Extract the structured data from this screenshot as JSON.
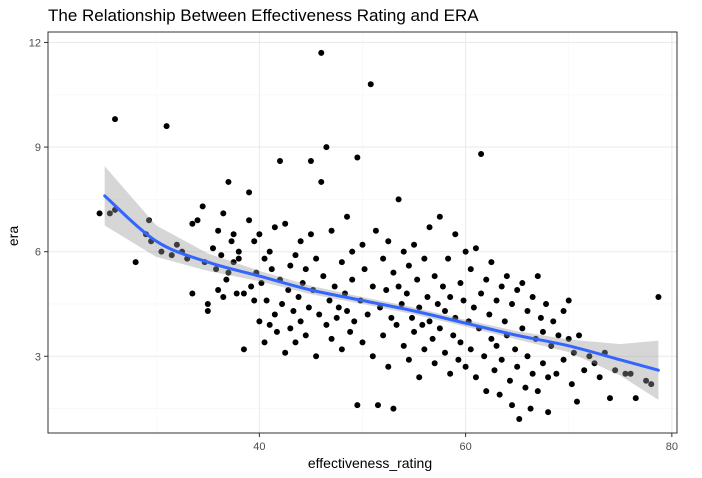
{
  "chart_data": {
    "type": "scatter",
    "title": "The Relationship Between Effectiveness Rating and ERA",
    "xlabel": "effectiveness_rating",
    "ylabel": "era",
    "xlim": [
      19.5,
      80.5
    ],
    "ylim": [
      0.8,
      12.3
    ],
    "x_ticks": [
      40,
      60,
      80
    ],
    "y_ticks": [
      3,
      6,
      9,
      12
    ],
    "x_tick_labels": [
      "40",
      "60",
      "80"
    ],
    "y_tick_labels": [
      "3",
      "6",
      "9",
      "12"
    ],
    "grid": true,
    "legend": "none",
    "colors": {
      "points": "#000000",
      "smooth": "#3366ff",
      "ribbon": "#999999"
    },
    "smooth": {
      "x": [
        25,
        30,
        35,
        40,
        45,
        50,
        55,
        60,
        65,
        70,
        75,
        78.7
      ],
      "y": [
        7.6,
        6.3,
        5.7,
        5.3,
        4.9,
        4.6,
        4.3,
        3.95,
        3.6,
        3.3,
        2.9,
        2.6
      ],
      "lower": [
        6.75,
        5.85,
        5.45,
        5.15,
        4.78,
        4.5,
        4.2,
        3.85,
        3.48,
        3.12,
        2.45,
        1.75
      ],
      "upper": [
        8.45,
        6.75,
        5.95,
        5.45,
        5.02,
        4.7,
        4.4,
        4.05,
        3.72,
        3.48,
        3.35,
        3.45
      ]
    },
    "points": [
      [
        24.5,
        7.1
      ],
      [
        25.5,
        7.1
      ],
      [
        26,
        9.8
      ],
      [
        26,
        7.2
      ],
      [
        28,
        5.7
      ],
      [
        29,
        6.5
      ],
      [
        29.3,
        6.9
      ],
      [
        29.5,
        6.3
      ],
      [
        30.5,
        6.0
      ],
      [
        31,
        9.6
      ],
      [
        31.5,
        5.9
      ],
      [
        32,
        6.2
      ],
      [
        32.5,
        6.0
      ],
      [
        33,
        5.8
      ],
      [
        33.5,
        4.8
      ],
      [
        33.5,
        6.8
      ],
      [
        34,
        6.9
      ],
      [
        34.5,
        7.3
      ],
      [
        34.7,
        5.7
      ],
      [
        35,
        4.5
      ],
      [
        35,
        4.3
      ],
      [
        35.5,
        6.1
      ],
      [
        35.8,
        5.5
      ],
      [
        36,
        6.6
      ],
      [
        36,
        4.9
      ],
      [
        36.3,
        5.9
      ],
      [
        36.5,
        4.7
      ],
      [
        36.5,
        7.1
      ],
      [
        36.8,
        5.2
      ],
      [
        37,
        8.0
      ],
      [
        37,
        5.4
      ],
      [
        37.3,
        6.3
      ],
      [
        37.5,
        6.5
      ],
      [
        37.5,
        5.7
      ],
      [
        37.8,
        4.8
      ],
      [
        38,
        5.8
      ],
      [
        38,
        6.0
      ],
      [
        38.5,
        3.2
      ],
      [
        38.5,
        4.8
      ],
      [
        39,
        7.7
      ],
      [
        39,
        6.9
      ],
      [
        39.2,
        5.0
      ],
      [
        39.5,
        6.3
      ],
      [
        39.5,
        4.6
      ],
      [
        39.7,
        5.4
      ],
      [
        40,
        6.5
      ],
      [
        40,
        4.0
      ],
      [
        40.2,
        5.1
      ],
      [
        40.5,
        3.4
      ],
      [
        40.5,
        5.8
      ],
      [
        40.7,
        4.6
      ],
      [
        41,
        6.0
      ],
      [
        41,
        3.9
      ],
      [
        41.2,
        5.5
      ],
      [
        41.5,
        4.2
      ],
      [
        41.5,
        6.7
      ],
      [
        41.7,
        3.7
      ],
      [
        42,
        8.6
      ],
      [
        42,
        5.2
      ],
      [
        42.2,
        4.5
      ],
      [
        42.5,
        3.1
      ],
      [
        42.5,
        6.8
      ],
      [
        42.8,
        4.9
      ],
      [
        43,
        5.6
      ],
      [
        43,
        3.8
      ],
      [
        43.3,
        4.3
      ],
      [
        43.5,
        5.9
      ],
      [
        43.5,
        3.4
      ],
      [
        43.8,
        4.7
      ],
      [
        44,
        6.3
      ],
      [
        44,
        4.0
      ],
      [
        44.2,
        5.1
      ],
      [
        44.5,
        3.6
      ],
      [
        44.5,
        5.5
      ],
      [
        44.8,
        4.4
      ],
      [
        45,
        8.6
      ],
      [
        45,
        6.5
      ],
      [
        45.2,
        4.9
      ],
      [
        45.5,
        3.0
      ],
      [
        45.5,
        5.8
      ],
      [
        45.8,
        4.2
      ],
      [
        46,
        11.7
      ],
      [
        46,
        8.0
      ],
      [
        46.2,
        5.3
      ],
      [
        46.5,
        3.9
      ],
      [
        46.5,
        9.0
      ],
      [
        46.8,
        4.6
      ],
      [
        47,
        6.6
      ],
      [
        47,
        3.5
      ],
      [
        47.3,
        5.0
      ],
      [
        47.5,
        4.1
      ],
      [
        47.7,
        4.4
      ],
      [
        48,
        5.7
      ],
      [
        48,
        3.2
      ],
      [
        48.3,
        4.8
      ],
      [
        48.5,
        7.0
      ],
      [
        48.5,
        4.3
      ],
      [
        48.8,
        3.7
      ],
      [
        49,
        6.0
      ],
      [
        49,
        5.2
      ],
      [
        49.2,
        4.0
      ],
      [
        49.5,
        8.7
      ],
      [
        49.5,
        1.6
      ],
      [
        49.8,
        4.6
      ],
      [
        50,
        6.2
      ],
      [
        50,
        3.4
      ],
      [
        50.2,
        5.5
      ],
      [
        50.5,
        4.2
      ],
      [
        50.8,
        10.8
      ],
      [
        51,
        5.0
      ],
      [
        51,
        3.0
      ],
      [
        51.3,
        6.6
      ],
      [
        51.5,
        1.6
      ],
      [
        51.7,
        4.4
      ],
      [
        52,
        5.8
      ],
      [
        52,
        3.6
      ],
      [
        52.3,
        4.9
      ],
      [
        52.5,
        6.3
      ],
      [
        52.5,
        2.7
      ],
      [
        52.8,
        4.1
      ],
      [
        53,
        5.4
      ],
      [
        53,
        1.5
      ],
      [
        53.3,
        3.9
      ],
      [
        53.5,
        5.0
      ],
      [
        53.5,
        7.5
      ],
      [
        53.8,
        4.5
      ],
      [
        54,
        3.3
      ],
      [
        54,
        6.0
      ],
      [
        54.3,
        4.8
      ],
      [
        54.5,
        2.9
      ],
      [
        54.5,
        5.6
      ],
      [
        54.8,
        4.1
      ],
      [
        55,
        6.2
      ],
      [
        55,
        3.7
      ],
      [
        55.3,
        5.2
      ],
      [
        55.5,
        4.4
      ],
      [
        55.5,
        2.4
      ],
      [
        55.8,
        3.9
      ],
      [
        56,
        5.8
      ],
      [
        56,
        3.2
      ],
      [
        56.3,
        4.7
      ],
      [
        56.5,
        6.7
      ],
      [
        56.5,
        4.0
      ],
      [
        56.8,
        3.5
      ],
      [
        57,
        5.3
      ],
      [
        57,
        2.8
      ],
      [
        57.3,
        4.5
      ],
      [
        57.5,
        7.0
      ],
      [
        57.5,
        3.8
      ],
      [
        57.8,
        5.0
      ],
      [
        58,
        3.1
      ],
      [
        58,
        4.3
      ],
      [
        58.3,
        5.8
      ],
      [
        58.5,
        2.5
      ],
      [
        58.5,
        4.7
      ],
      [
        58.8,
        3.6
      ],
      [
        59,
        6.5
      ],
      [
        59,
        4.1
      ],
      [
        59.3,
        2.9
      ],
      [
        59.5,
        5.1
      ],
      [
        59.5,
        3.4
      ],
      [
        59.8,
        4.6
      ],
      [
        60,
        6.0
      ],
      [
        60,
        2.7
      ],
      [
        60.3,
        4.0
      ],
      [
        60.5,
        5.5
      ],
      [
        60.5,
        3.2
      ],
      [
        60.8,
        4.4
      ],
      [
        61,
        6.1
      ],
      [
        61,
        2.4
      ],
      [
        61.3,
        3.8
      ],
      [
        61.5,
        8.8
      ],
      [
        61.5,
        4.8
      ],
      [
        61.8,
        3.0
      ],
      [
        62,
        5.2
      ],
      [
        62,
        2.0
      ],
      [
        62.3,
        4.2
      ],
      [
        62.5,
        3.5
      ],
      [
        62.5,
        5.7
      ],
      [
        62.8,
        2.6
      ],
      [
        63,
        4.6
      ],
      [
        63,
        3.3
      ],
      [
        63.3,
        1.9
      ],
      [
        63.5,
        5.0
      ],
      [
        63.5,
        2.9
      ],
      [
        63.8,
        4.0
      ],
      [
        64,
        3.6
      ],
      [
        64,
        5.3
      ],
      [
        64.3,
        2.3
      ],
      [
        64.5,
        4.5
      ],
      [
        64.5,
        1.6
      ],
      [
        64.8,
        3.2
      ],
      [
        65,
        4.9
      ],
      [
        65,
        2.7
      ],
      [
        65.2,
        1.2
      ],
      [
        65.5,
        3.8
      ],
      [
        65.5,
        5.1
      ],
      [
        65.8,
        2.1
      ],
      [
        66,
        4.3
      ],
      [
        66,
        3.0
      ],
      [
        66.3,
        1.5
      ],
      [
        66.5,
        4.7
      ],
      [
        66.5,
        2.5
      ],
      [
        66.8,
        3.5
      ],
      [
        67,
        5.3
      ],
      [
        67,
        2.0
      ],
      [
        67.3,
        4.1
      ],
      [
        67.5,
        2.8
      ],
      [
        67.5,
        3.7
      ],
      [
        67.8,
        4.5
      ],
      [
        68,
        2.4
      ],
      [
        68,
        1.4
      ],
      [
        68.3,
        3.3
      ],
      [
        68.5,
        4.0
      ],
      [
        68.8,
        2.5
      ],
      [
        69,
        3.6
      ],
      [
        69.5,
        4.3
      ],
      [
        69.5,
        2.9
      ],
      [
        70,
        3.5
      ],
      [
        70,
        4.6
      ],
      [
        70.3,
        2.2
      ],
      [
        70.5,
        3.1
      ],
      [
        70.8,
        1.7
      ],
      [
        71,
        3.6
      ],
      [
        71.5,
        2.6
      ],
      [
        72,
        3.0
      ],
      [
        72.5,
        2.8
      ],
      [
        73,
        2.4
      ],
      [
        73.5,
        3.1
      ],
      [
        74,
        1.8
      ],
      [
        74.5,
        2.6
      ],
      [
        75.5,
        2.5
      ],
      [
        76,
        2.5
      ],
      [
        76.5,
        1.8
      ],
      [
        77.5,
        2.3
      ],
      [
        78,
        2.2
      ],
      [
        78.7,
        4.7
      ]
    ]
  }
}
